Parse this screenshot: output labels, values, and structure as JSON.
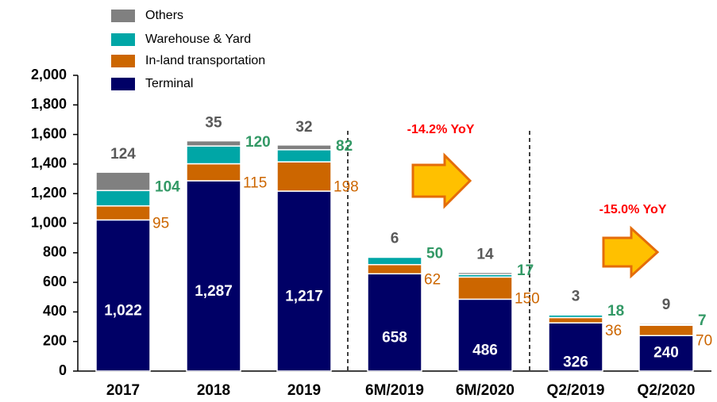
{
  "chart_data": {
    "type": "stacked_bar",
    "categories": [
      "2017",
      "2018",
      "2019",
      "6M/2019",
      "6M/2020",
      "Q2/2019",
      "Q2/2020"
    ],
    "series": [
      {
        "name": "Terminal",
        "color": "#000066",
        "values": [
          1022,
          1287,
          1217,
          658,
          486,
          326,
          240
        ],
        "value_labels": [
          "1,022",
          "1,287",
          "1,217",
          "658",
          "486",
          "326",
          "240"
        ]
      },
      {
        "name": "In-land transportation",
        "color": "#cc6600",
        "values": [
          95,
          115,
          198,
          62,
          150,
          36,
          70
        ]
      },
      {
        "name": "Warehouse & Yard",
        "color": "#00a6a6",
        "values": [
          104,
          120,
          82,
          50,
          17,
          18,
          7
        ]
      },
      {
        "name": "Others",
        "color": "#808080",
        "values": [
          124,
          35,
          32,
          6,
          14,
          3,
          9
        ]
      }
    ],
    "ylim": [
      0,
      2000
    ],
    "yticks": [
      0,
      200,
      400,
      600,
      800,
      {
        "value": 1000,
        "label": "1,000"
      },
      {
        "value": 1200,
        "label": "1,200"
      },
      {
        "value": 1400,
        "label": "1,400"
      },
      {
        "value": 1600,
        "label": "1,600"
      },
      {
        "value": 1800,
        "label": "1,800"
      },
      {
        "value": 2000,
        "label": "2,000"
      }
    ],
    "annotations": [
      "-14.2% YoY",
      "-15.0% YoY"
    ]
  }
}
